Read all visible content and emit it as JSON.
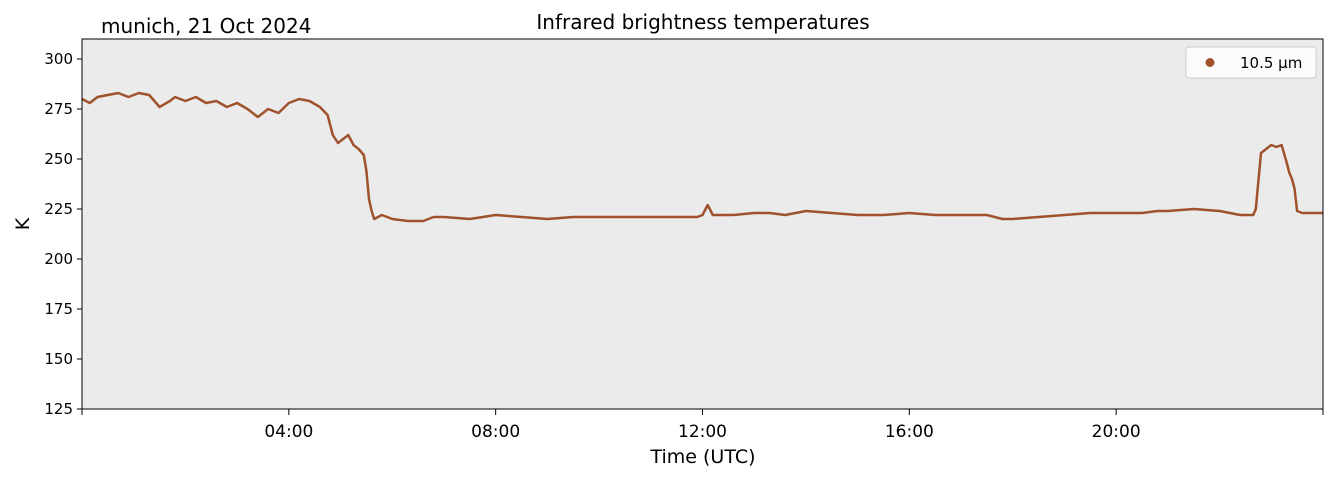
{
  "location_date": "munich, 21 Oct 2024",
  "chart_data": {
    "type": "line",
    "title": "Infrared brightness temperatures",
    "xlabel": "Time (UTC)",
    "ylabel": "K",
    "xlim_hours": [
      0,
      24
    ],
    "ylim": [
      125,
      310
    ],
    "grid": false,
    "legend_position": "top-right",
    "background_color": "#ebebeb",
    "y_ticks": [
      125,
      150,
      175,
      200,
      225,
      250,
      275,
      300
    ],
    "x_ticks": [
      {
        "hour": 4,
        "label": "04:00"
      },
      {
        "hour": 8,
        "label": "08:00"
      },
      {
        "hour": 12,
        "label": "12:00"
      },
      {
        "hour": 16,
        "label": "16:00"
      },
      {
        "hour": 20,
        "label": "20:00"
      }
    ],
    "series": [
      {
        "name": "10.5 µm",
        "color": "#a0522d",
        "marker": "circle",
        "x_hours": [
          0.0,
          0.15,
          0.3,
          0.5,
          0.7,
          0.9,
          1.1,
          1.3,
          1.5,
          1.7,
          1.8,
          2.0,
          2.2,
          2.4,
          2.6,
          2.8,
          3.0,
          3.2,
          3.4,
          3.5,
          3.6,
          3.8,
          4.0,
          4.2,
          4.4,
          4.6,
          4.75,
          4.85,
          4.95,
          5.05,
          5.15,
          5.25,
          5.35,
          5.45,
          5.5,
          5.55,
          5.6,
          5.65,
          5.8,
          6.0,
          6.3,
          6.6,
          6.8,
          7.0,
          7.5,
          8.0,
          8.5,
          9.0,
          9.5,
          10.0,
          10.5,
          11.0,
          11.5,
          11.9,
          12.0,
          12.1,
          12.2,
          12.3,
          12.6,
          13.0,
          13.3,
          13.6,
          14.0,
          14.5,
          15.0,
          15.5,
          16.0,
          16.5,
          17.0,
          17.5,
          17.8,
          18.0,
          18.5,
          19.0,
          19.5,
          20.0,
          20.5,
          20.8,
          21.0,
          21.5,
          22.0,
          22.4,
          22.6,
          22.65,
          22.7,
          22.8,
          22.9,
          23.0,
          23.1,
          23.2,
          23.3,
          23.35,
          23.4,
          23.45,
          23.5,
          23.6,
          23.8,
          24.0
        ],
        "values": [
          280,
          278,
          281,
          282,
          283,
          281,
          283,
          282,
          276,
          279,
          281,
          279,
          281,
          278,
          279,
          276,
          278,
          275,
          271,
          273,
          275,
          273,
          278,
          280,
          279,
          276,
          272,
          262,
          258,
          260,
          262,
          257,
          255,
          252,
          244,
          230,
          224,
          220,
          222,
          220,
          219,
          219,
          221,
          221,
          220,
          222,
          221,
          220,
          221,
          221,
          221,
          221,
          221,
          221,
          222,
          227,
          222,
          222,
          222,
          223,
          223,
          222,
          224,
          223,
          222,
          222,
          223,
          222,
          222,
          222,
          220,
          220,
          221,
          222,
          223,
          223,
          223,
          224,
          224,
          225,
          224,
          222,
          222,
          222,
          225,
          253,
          255,
          257,
          256,
          257,
          248,
          243,
          240,
          235,
          224,
          223,
          223,
          223
        ]
      }
    ]
  }
}
